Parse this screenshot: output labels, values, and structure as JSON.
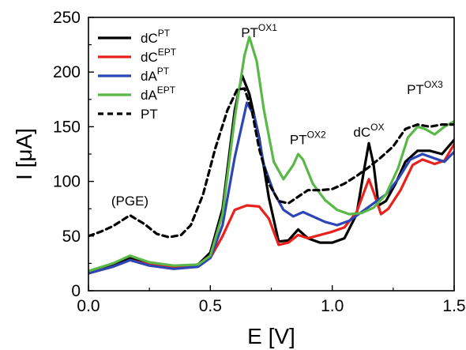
{
  "chart_data": {
    "type": "line",
    "xlabel": "E [V]",
    "ylabel": "I [μA]",
    "xlim": [
      0.0,
      1.5
    ],
    "ylim": [
      0,
      250
    ],
    "x_ticks": [
      "0.0",
      "0.5",
      "1.0",
      "1.5"
    ],
    "y_ticks": [
      "0",
      "50",
      "100",
      "150",
      "200",
      "250"
    ],
    "grid": false,
    "legend_position": "top-left",
    "series": [
      {
        "name": "dC",
        "sup": "PT",
        "color": "#000000",
        "dash": "solid",
        "points": [
          [
            0.0,
            18
          ],
          [
            0.1,
            24
          ],
          [
            0.17,
            30
          ],
          [
            0.25,
            25
          ],
          [
            0.35,
            22
          ],
          [
            0.45,
            24
          ],
          [
            0.5,
            35
          ],
          [
            0.55,
            75
          ],
          [
            0.6,
            165
          ],
          [
            0.63,
            197
          ],
          [
            0.66,
            180
          ],
          [
            0.7,
            140
          ],
          [
            0.74,
            85
          ],
          [
            0.78,
            45
          ],
          [
            0.82,
            46
          ],
          [
            0.86,
            56
          ],
          [
            0.9,
            48
          ],
          [
            0.95,
            44
          ],
          [
            1.0,
            44
          ],
          [
            1.05,
            48
          ],
          [
            1.1,
            70
          ],
          [
            1.13,
            110
          ],
          [
            1.15,
            135
          ],
          [
            1.17,
            115
          ],
          [
            1.19,
            78
          ],
          [
            1.22,
            82
          ],
          [
            1.26,
            98
          ],
          [
            1.3,
            118
          ],
          [
            1.35,
            128
          ],
          [
            1.4,
            128
          ],
          [
            1.45,
            125
          ],
          [
            1.5,
            138
          ]
        ]
      },
      {
        "name": "dC",
        "sup": "EPT",
        "color": "#e8211c",
        "dash": "solid",
        "points": [
          [
            0.0,
            16
          ],
          [
            0.1,
            22
          ],
          [
            0.17,
            28
          ],
          [
            0.25,
            24
          ],
          [
            0.35,
            21
          ],
          [
            0.45,
            23
          ],
          [
            0.5,
            30
          ],
          [
            0.55,
            50
          ],
          [
            0.6,
            74
          ],
          [
            0.65,
            78
          ],
          [
            0.7,
            77
          ],
          [
            0.74,
            66
          ],
          [
            0.78,
            42
          ],
          [
            0.82,
            44
          ],
          [
            0.86,
            51
          ],
          [
            0.9,
            48
          ],
          [
            0.95,
            51
          ],
          [
            1.0,
            54
          ],
          [
            1.05,
            58
          ],
          [
            1.1,
            72
          ],
          [
            1.13,
            90
          ],
          [
            1.15,
            102
          ],
          [
            1.17,
            90
          ],
          [
            1.2,
            70
          ],
          [
            1.23,
            75
          ],
          [
            1.28,
            92
          ],
          [
            1.33,
            115
          ],
          [
            1.37,
            120
          ],
          [
            1.42,
            116
          ],
          [
            1.46,
            119
          ],
          [
            1.5,
            134
          ]
        ]
      },
      {
        "name": "dA",
        "sup": "PT",
        "color": "#2e45b5",
        "dash": "solid",
        "points": [
          [
            0.0,
            16
          ],
          [
            0.1,
            22
          ],
          [
            0.17,
            28
          ],
          [
            0.25,
            23
          ],
          [
            0.35,
            20
          ],
          [
            0.45,
            22
          ],
          [
            0.5,
            30
          ],
          [
            0.55,
            60
          ],
          [
            0.6,
            122
          ],
          [
            0.65,
            172
          ],
          [
            0.68,
            160
          ],
          [
            0.72,
            115
          ],
          [
            0.76,
            90
          ],
          [
            0.8,
            74
          ],
          [
            0.84,
            68
          ],
          [
            0.88,
            72
          ],
          [
            0.92,
            68
          ],
          [
            0.97,
            63
          ],
          [
            1.02,
            60
          ],
          [
            1.07,
            64
          ],
          [
            1.12,
            72
          ],
          [
            1.17,
            80
          ],
          [
            1.22,
            88
          ],
          [
            1.27,
            102
          ],
          [
            1.32,
            120
          ],
          [
            1.37,
            125
          ],
          [
            1.42,
            121
          ],
          [
            1.46,
            118
          ],
          [
            1.5,
            127
          ]
        ]
      },
      {
        "name": "dA",
        "sup": "EPT",
        "color": "#5ab848",
        "dash": "solid",
        "points": [
          [
            0.0,
            18
          ],
          [
            0.1,
            25
          ],
          [
            0.17,
            32
          ],
          [
            0.25,
            26
          ],
          [
            0.35,
            23
          ],
          [
            0.45,
            24
          ],
          [
            0.5,
            32
          ],
          [
            0.55,
            70
          ],
          [
            0.6,
            158
          ],
          [
            0.64,
            215
          ],
          [
            0.66,
            232
          ],
          [
            0.69,
            210
          ],
          [
            0.72,
            165
          ],
          [
            0.76,
            118
          ],
          [
            0.8,
            102
          ],
          [
            0.84,
            115
          ],
          [
            0.86,
            125
          ],
          [
            0.88,
            120
          ],
          [
            0.92,
            98
          ],
          [
            0.97,
            83
          ],
          [
            1.02,
            74
          ],
          [
            1.07,
            70
          ],
          [
            1.12,
            71
          ],
          [
            1.17,
            76
          ],
          [
            1.22,
            88
          ],
          [
            1.27,
            112
          ],
          [
            1.31,
            140
          ],
          [
            1.35,
            150
          ],
          [
            1.38,
            148
          ],
          [
            1.42,
            143
          ],
          [
            1.46,
            150
          ],
          [
            1.5,
            155
          ]
        ]
      },
      {
        "name": "PT",
        "sup": "",
        "color": "#000000",
        "dash": "dashed",
        "points": [
          [
            0.0,
            50
          ],
          [
            0.05,
            54
          ],
          [
            0.1,
            59
          ],
          [
            0.17,
            69
          ],
          [
            0.23,
            61
          ],
          [
            0.28,
            52
          ],
          [
            0.33,
            49
          ],
          [
            0.38,
            51
          ],
          [
            0.42,
            60
          ],
          [
            0.47,
            88
          ],
          [
            0.52,
            130
          ],
          [
            0.57,
            165
          ],
          [
            0.61,
            184
          ],
          [
            0.64,
            185
          ],
          [
            0.67,
            165
          ],
          [
            0.7,
            130
          ],
          [
            0.74,
            98
          ],
          [
            0.78,
            82
          ],
          [
            0.82,
            80
          ],
          [
            0.86,
            86
          ],
          [
            0.9,
            92
          ],
          [
            0.95,
            92
          ],
          [
            1.0,
            93
          ],
          [
            1.05,
            98
          ],
          [
            1.1,
            105
          ],
          [
            1.15,
            113
          ],
          [
            1.2,
            122
          ],
          [
            1.25,
            132
          ],
          [
            1.3,
            148
          ],
          [
            1.35,
            152
          ],
          [
            1.4,
            150
          ],
          [
            1.45,
            152
          ],
          [
            1.5,
            152
          ]
        ]
      }
    ],
    "annotations": [
      {
        "base": "(PGE)",
        "sup": "",
        "x": 0.17,
        "y": 78
      },
      {
        "base": "PT",
        "sup": "OX1",
        "x": 0.7,
        "y": 232
      },
      {
        "base": "PT",
        "sup": "OX2",
        "x": 0.9,
        "y": 134
      },
      {
        "base": "dC",
        "sup": "OX",
        "x": 1.15,
        "y": 141
      },
      {
        "base": "PT",
        "sup": "OX3",
        "x": 1.38,
        "y": 180
      }
    ]
  }
}
